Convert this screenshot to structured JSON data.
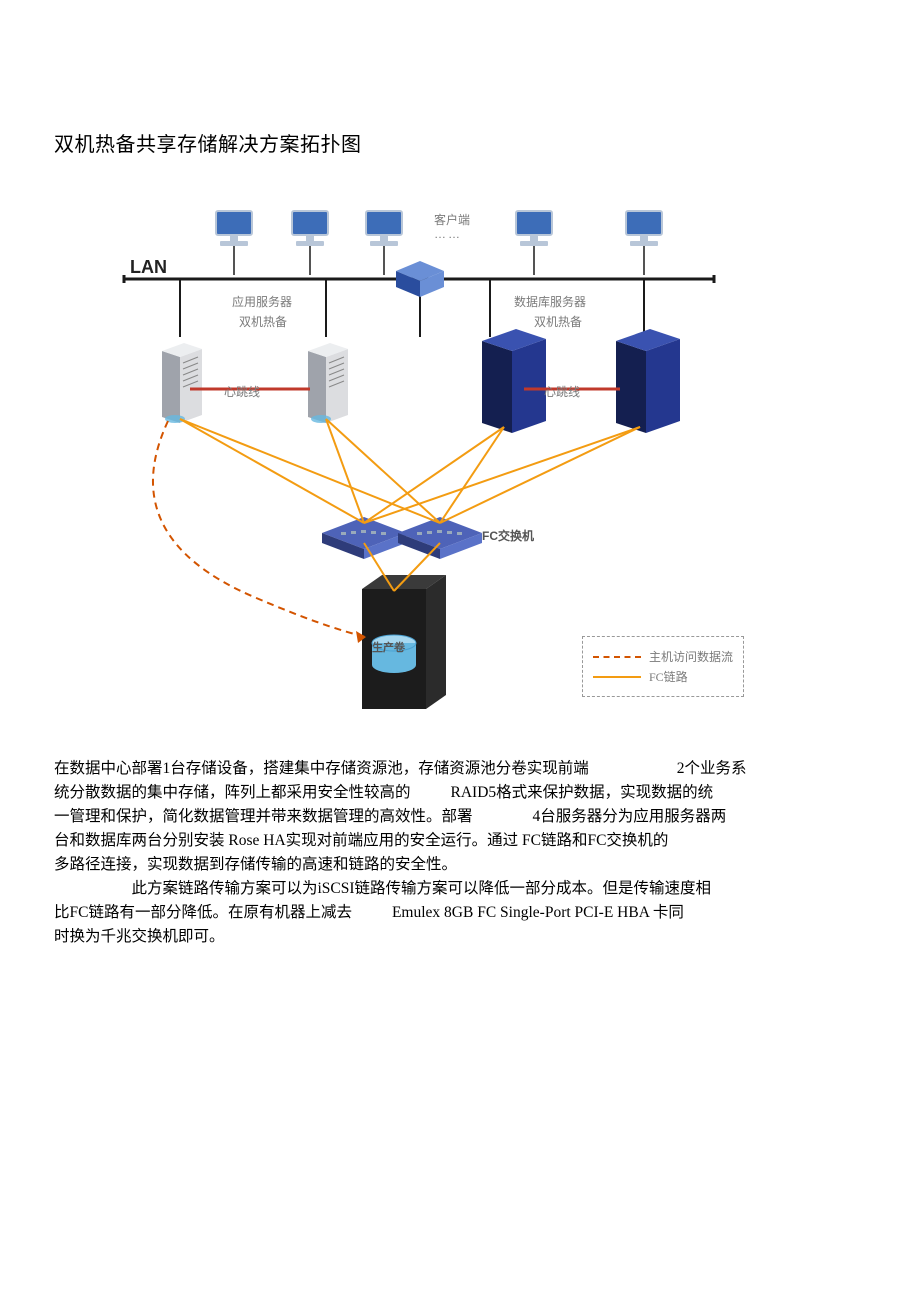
{
  "title": "双机热备共享存储解决方案拓扑图",
  "diagram": {
    "type": "network",
    "bg": "#ffffff",
    "lan_label": "LAN",
    "labels": {
      "clients": "客户端",
      "dots": "……",
      "app_server": "应用服务器",
      "hot_standby": "双机热备",
      "db_server": "数据库服务器",
      "heartbeat": "心跳线",
      "fc_switch": "FC交换机",
      "prod_volume": "生产卷"
    },
    "colors": {
      "lan_line": "#1a1a1a",
      "client_body": "#b8c6d8",
      "client_screen": "#3d6db8",
      "router_body": "#2a4d9e",
      "router_light": "#6a8fd6",
      "server_body": "#dcdde0",
      "server_shadow": "#9fa3ab",
      "db_body": "#24378f",
      "db_shadow": "#141f50",
      "heartbeat_line": "#c0392b",
      "fc_line": "#f39c12",
      "host_line": "#d35400",
      "fc_switch_top": "#2e3c7a",
      "fc_switch_side": "#4e63b8",
      "storage_body": "#1c1c1c",
      "storage_top": "#3a3a3a",
      "vol_top": "#a7d8f0",
      "vol_side": "#66b8e0",
      "label_text": "#7a7a7a",
      "legend_border": "#999999"
    },
    "legend": {
      "host_flow": "主机访问数据流",
      "fc_link": "FC链路"
    },
    "line_widths": {
      "lan": 3,
      "fc": 2,
      "heartbeat": 3,
      "host": 2
    }
  },
  "body": {
    "p1_a": "在数据中心部署1台存储设备，搭建集中存储资源池，存储资源池分卷实现前端",
    "p1_b": "2个业务系",
    "p2_a": "统分散数据的集中存储，阵列上都采用安全性较高的",
    "p2_b": "RAID5格式来保护数据，实现数据的统",
    "p3_a": "一管理和保护，简化数据管理并带来数据管理的高效性。部署",
    "p3_b": "4台服务器分为应用服务器两",
    "p4": "台和数据库两台分别安装 Rose HA实现对前端应用的安全运行。通过 FC链路和FC交换机的",
    "p5": "多路径连接，实现数据到存储传输的高速和链路的安全性。",
    "p6": "此方案链路传输方案可以为iSCSI链路传输方案可以降低一部分成本。但是传输速度相",
    "p7_a": "比FC链路有一部分降低。在原有机器上减去",
    "p7_b": "Emulex 8GB FC Single-Port PCI-E HBA 卡同",
    "p8": "时换为千兆交换机即可。"
  }
}
